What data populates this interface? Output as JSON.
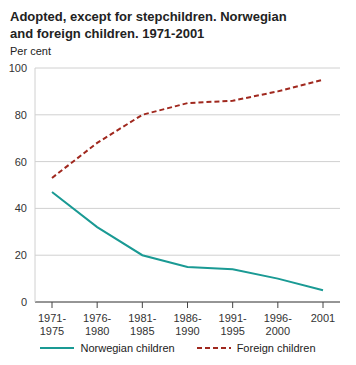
{
  "chart_data": {
    "type": "line",
    "title": "Adopted, except for stepchildren. Norwegian and foreign children. 1971-2001",
    "y_label": "Per cent",
    "categories": [
      "1971-1975",
      "1976-1980",
      "1981-1985",
      "1986-1990",
      "1991-1995",
      "1996-2000",
      "2001"
    ],
    "series": [
      {
        "name": "Norwegian children",
        "color": "#1a9a94",
        "line_style": "solid",
        "values": [
          47,
          32,
          20,
          15,
          14,
          10,
          5
        ]
      },
      {
        "name": "Foreign children",
        "color": "#a0281e",
        "line_style": "dashed",
        "values": [
          53,
          68,
          80,
          85,
          86,
          90,
          95
        ]
      }
    ],
    "ylim": [
      0,
      100
    ],
    "yticks": [
      0,
      20,
      40,
      60,
      80,
      100
    ],
    "grid": true,
    "legend": "bottom"
  }
}
